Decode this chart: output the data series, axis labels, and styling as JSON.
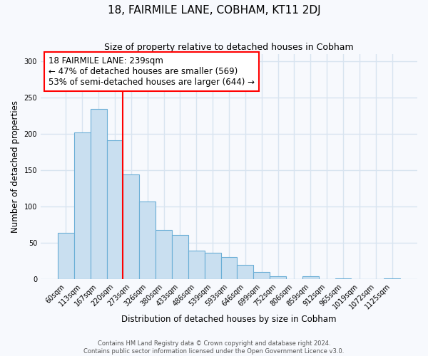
{
  "title": "18, FAIRMILE LANE, COBHAM, KT11 2DJ",
  "subtitle": "Size of property relative to detached houses in Cobham",
  "xlabel": "Distribution of detached houses by size in Cobham",
  "ylabel": "Number of detached properties",
  "bar_labels": [
    "60sqm",
    "113sqm",
    "167sqm",
    "220sqm",
    "273sqm",
    "326sqm",
    "380sqm",
    "433sqm",
    "486sqm",
    "539sqm",
    "593sqm",
    "646sqm",
    "699sqm",
    "752sqm",
    "806sqm",
    "859sqm",
    "912sqm",
    "965sqm",
    "1019sqm",
    "1072sqm",
    "1125sqm"
  ],
  "bar_values": [
    64,
    202,
    234,
    191,
    144,
    107,
    68,
    61,
    39,
    37,
    31,
    20,
    10,
    4,
    0,
    4,
    0,
    1,
    0,
    0,
    1
  ],
  "bar_color": "#c9dff0",
  "bar_edge_color": "#6aaed6",
  "vline_x": 3.5,
  "vline_color": "red",
  "annotation_text": "18 FAIRMILE LANE: 239sqm\n← 47% of detached houses are smaller (569)\n53% of semi-detached houses are larger (644) →",
  "annotation_box_color": "white",
  "annotation_box_edge_color": "red",
  "ylim": [
    0,
    310
  ],
  "yticks": [
    0,
    50,
    100,
    150,
    200,
    250,
    300
  ],
  "footer1": "Contains HM Land Registry data © Crown copyright and database right 2024.",
  "footer2": "Contains public sector information licensed under the Open Government Licence v3.0.",
  "bg_color": "#f7f9fd",
  "plot_bg_color": "#f7f9fd",
  "grid_color": "#d8e4f0"
}
